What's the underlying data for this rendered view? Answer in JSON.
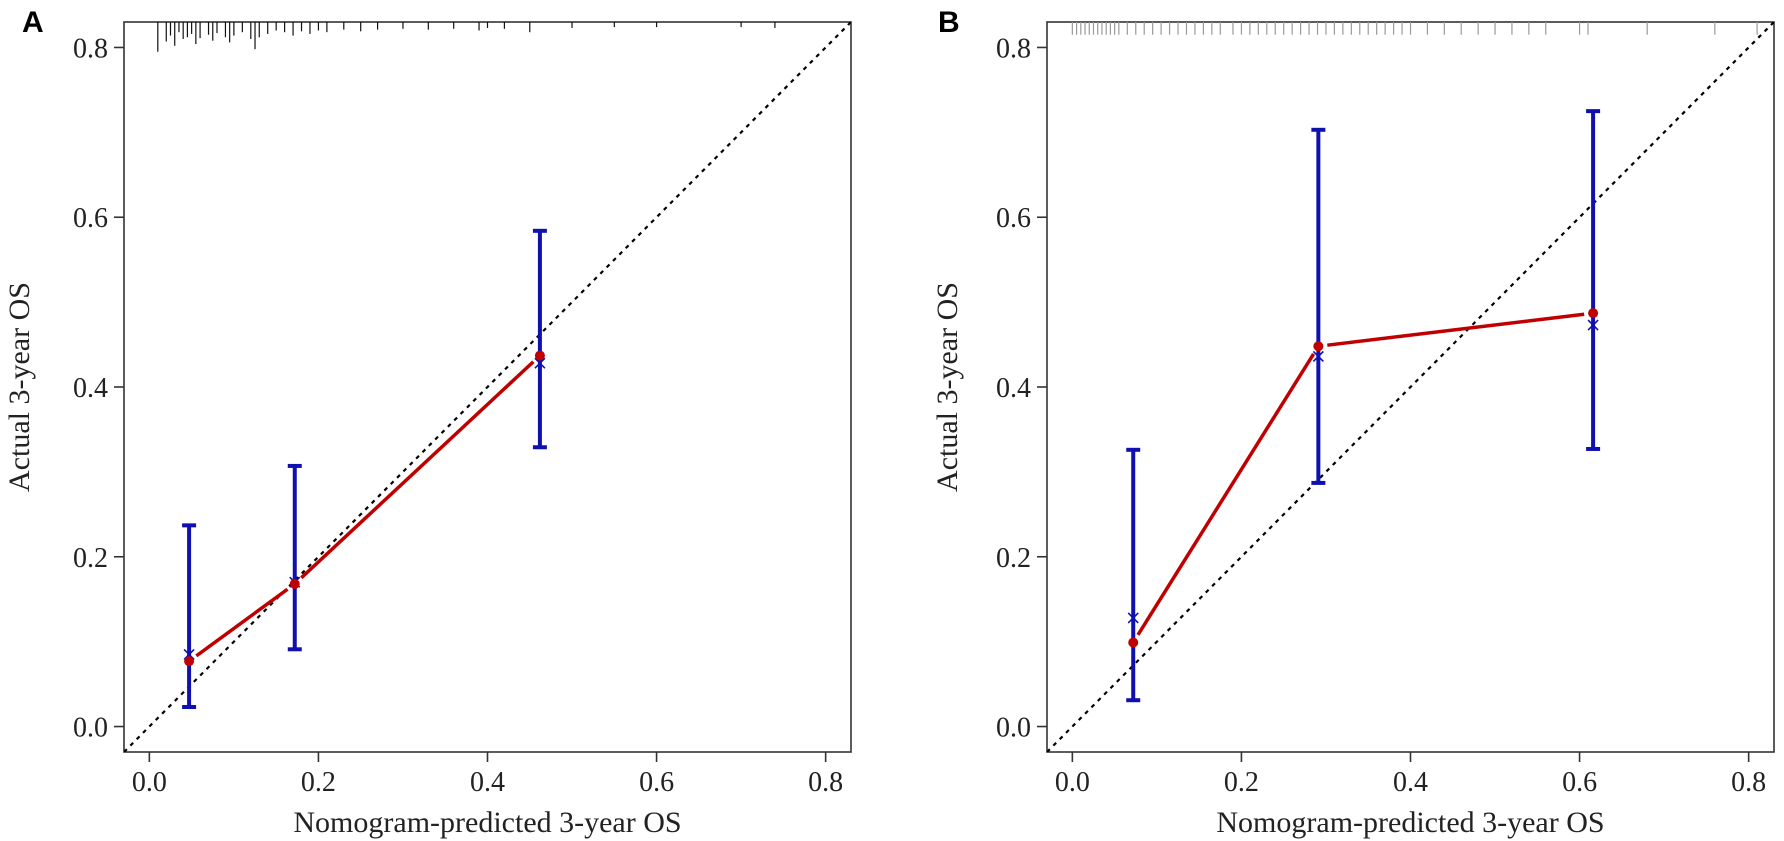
{
  "chart_data": [
    {
      "panel_label": "A",
      "type": "line",
      "xlabel": "Nomogram-predicted 3-year OS",
      "ylabel": "Actual 3-year OS",
      "xlim": [
        -0.03,
        0.83
      ],
      "ylim": [
        -0.03,
        0.83
      ],
      "x_ticks": [
        0.0,
        0.2,
        0.4,
        0.6,
        0.8
      ],
      "y_ticks": [
        0.0,
        0.2,
        0.4,
        0.6,
        0.8
      ],
      "x_tick_labels": [
        "0.0",
        "0.2",
        "0.4",
        "0.6",
        "0.8"
      ],
      "y_tick_labels": [
        "0.0",
        "0.2",
        "0.4",
        "0.6",
        "0.8"
      ],
      "reference_line": "dotted diagonal y = x",
      "colors": {
        "line": "#c00000",
        "errorbar": "#1010b0",
        "reference": "#000000",
        "rug": "#111111"
      },
      "points": [
        {
          "x": 0.047,
          "y": 0.077,
          "x_marker": 0.085,
          "ci_low": 0.023,
          "ci_high": 0.237
        },
        {
          "x": 0.172,
          "y": 0.168,
          "x_marker": 0.17,
          "ci_low": 0.091,
          "ci_high": 0.307
        },
        {
          "x": 0.462,
          "y": 0.437,
          "x_marker": 0.428,
          "ci_low": 0.329,
          "ci_high": 0.584
        }
      ],
      "rug": [
        0.01,
        0.02,
        0.025,
        0.03,
        0.035,
        0.04,
        0.045,
        0.05,
        0.055,
        0.06,
        0.07,
        0.075,
        0.08,
        0.09,
        0.095,
        0.1,
        0.11,
        0.12,
        0.125,
        0.13,
        0.14,
        0.15,
        0.16,
        0.17,
        0.18,
        0.19,
        0.2,
        0.21,
        0.23,
        0.25,
        0.27,
        0.3,
        0.33,
        0.36,
        0.39,
        0.4,
        0.42,
        0.45,
        0.5,
        0.55,
        0.6,
        0.7,
        0.74
      ],
      "rug_lengths": [
        0.035,
        0.023,
        0.016,
        0.028,
        0.012,
        0.02,
        0.018,
        0.014,
        0.026,
        0.019,
        0.015,
        0.022,
        0.013,
        0.018,
        0.024,
        0.016,
        0.012,
        0.02,
        0.032,
        0.018,
        0.014,
        0.01,
        0.012,
        0.016,
        0.011,
        0.014,
        0.01,
        0.012,
        0.009,
        0.011,
        0.009,
        0.008,
        0.009,
        0.008,
        0.01,
        0.007,
        0.008,
        0.012,
        0.007,
        0.006,
        0.006,
        0.006,
        0.007
      ]
    },
    {
      "panel_label": "B",
      "type": "line",
      "xlabel": "Nomogram-predicted 3-year OS",
      "ylabel": "Actual 3-year OS",
      "xlim": [
        -0.03,
        0.83
      ],
      "ylim": [
        -0.03,
        0.83
      ],
      "x_ticks": [
        0.0,
        0.2,
        0.4,
        0.6,
        0.8
      ],
      "y_ticks": [
        0.0,
        0.2,
        0.4,
        0.6,
        0.8
      ],
      "x_tick_labels": [
        "0.0",
        "0.2",
        "0.4",
        "0.6",
        "0.8"
      ],
      "y_tick_labels": [
        "0.0",
        "0.2",
        "0.4",
        "0.6",
        "0.8"
      ],
      "reference_line": "dotted diagonal y = x",
      "colors": {
        "line": "#c00000",
        "errorbar": "#1010b0",
        "reference": "#000000",
        "rug": "#9a9a9a"
      },
      "points": [
        {
          "x": 0.072,
          "y": 0.099,
          "x_marker": 0.128,
          "ci_low": 0.031,
          "ci_high": 0.326
        },
        {
          "x": 0.291,
          "y": 0.448,
          "x_marker": 0.436,
          "ci_low": 0.287,
          "ci_high": 0.703
        },
        {
          "x": 0.616,
          "y": 0.487,
          "x_marker": 0.473,
          "ci_low": 0.327,
          "ci_high": 0.725
        }
      ],
      "rug": [
        0.0,
        0.005,
        0.01,
        0.015,
        0.02,
        0.025,
        0.03,
        0.035,
        0.04,
        0.045,
        0.05,
        0.055,
        0.065,
        0.075,
        0.085,
        0.095,
        0.105,
        0.115,
        0.125,
        0.135,
        0.145,
        0.155,
        0.165,
        0.175,
        0.19,
        0.2,
        0.21,
        0.22,
        0.23,
        0.24,
        0.25,
        0.26,
        0.27,
        0.28,
        0.29,
        0.3,
        0.31,
        0.32,
        0.33,
        0.34,
        0.35,
        0.36,
        0.37,
        0.38,
        0.39,
        0.4,
        0.42,
        0.44,
        0.46,
        0.48,
        0.5,
        0.52,
        0.54,
        0.56,
        0.6,
        0.61,
        0.68,
        0.76,
        0.81
      ],
      "rug_lengths": []
    }
  ]
}
